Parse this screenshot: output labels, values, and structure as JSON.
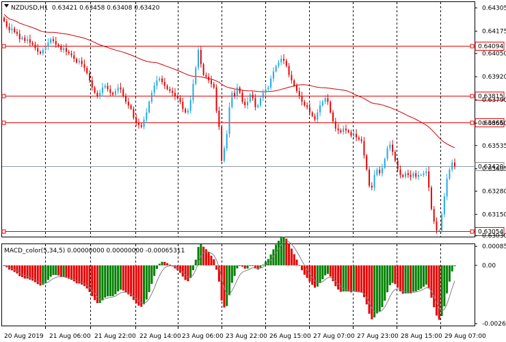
{
  "header": {
    "symbol": "NZDUSD,H1",
    "ohlc": "0.63421 0.63458 0.63408 0.63420"
  },
  "macd_header": "MACD_color(5,34,5) 0.00000000 0.00000000 -0.00065311",
  "colors": {
    "bull": "#1fa9e6",
    "bear": "#e60000",
    "macd_up": "#008000",
    "macd_down": "#e60000",
    "ma": "#cc0000",
    "grid": "#000000"
  },
  "chart_data": [
    {
      "type": "candlestick",
      "title": "NZDUSD,H1",
      "ylim": [
        0.63025,
        0.64338
      ],
      "y_ticks": [
        "0.64305",
        "0.64175",
        "0.64050",
        "0.63920",
        "0.63790",
        "0.63660",
        "0.63535",
        "0.63405",
        "0.63280",
        "0.63150",
        "0.63030"
      ],
      "x_ticks": [
        "20 Aug 2019",
        "21 Aug 06:00",
        "21 Aug 22:00",
        "22 Aug 14:00",
        "23 Aug 06:00",
        "23 Aug 22:00",
        "26 Aug 15:00",
        "27 Aug 07:00",
        "27 Aug 23:00",
        "28 Aug 15:00",
        "29 Aug 07:00"
      ],
      "horizontal_levels": [
        {
          "value": 0.64094,
          "label": "0.64094",
          "style": "red"
        },
        {
          "value": 0.63815,
          "label": "0.63815",
          "style": "red"
        },
        {
          "value": 0.63665,
          "label": "0.63665",
          "style": "red"
        },
        {
          "value": 0.6342,
          "label": "0.63420",
          "style": "grey"
        },
        {
          "value": 0.63054,
          "label": "0.63054",
          "style": "red"
        }
      ],
      "close_series": [
        0.6423,
        0.642,
        0.6418,
        0.6419,
        0.6417,
        0.6416,
        0.6413,
        0.6414,
        0.6412,
        0.6413,
        0.6411,
        0.641,
        0.6408,
        0.6406,
        0.6405,
        0.6407,
        0.6409,
        0.6411,
        0.6413,
        0.6412,
        0.641,
        0.6409,
        0.6407,
        0.6408,
        0.6406,
        0.6405,
        0.6404,
        0.6402,
        0.64,
        0.6401,
        0.6399,
        0.6397,
        0.6394,
        0.639,
        0.6386,
        0.6383,
        0.6381,
        0.6383,
        0.6386,
        0.6387,
        0.6385,
        0.6383,
        0.6382,
        0.6384,
        0.6386,
        0.6385,
        0.6381,
        0.6378,
        0.6376,
        0.6374,
        0.6369,
        0.6366,
        0.6365,
        0.6364,
        0.6368,
        0.6372,
        0.6378,
        0.6383,
        0.6387,
        0.639,
        0.6391,
        0.6389,
        0.6387,
        0.6385,
        0.6384,
        0.6383,
        0.6381,
        0.638,
        0.6378,
        0.6374,
        0.6372,
        0.6373,
        0.6379,
        0.6388,
        0.6397,
        0.6407,
        0.6399,
        0.6393,
        0.6392,
        0.639,
        0.6388,
        0.6386,
        0.6373,
        0.6364,
        0.6345,
        0.6352,
        0.636,
        0.6375,
        0.6383,
        0.6381,
        0.6386,
        0.6383,
        0.6378,
        0.6376,
        0.6378,
        0.6382,
        0.638,
        0.6375,
        0.6376,
        0.638,
        0.6383,
        0.6385,
        0.6386,
        0.6391,
        0.6395,
        0.6398,
        0.64,
        0.6402,
        0.6401,
        0.6398,
        0.6393,
        0.639,
        0.6387,
        0.6384,
        0.6381,
        0.6378,
        0.6376,
        0.6375,
        0.6372,
        0.637,
        0.6368,
        0.6372,
        0.6376,
        0.6378,
        0.638,
        0.6378,
        0.6372,
        0.6367,
        0.6363,
        0.6362,
        0.6361,
        0.6363,
        0.6362,
        0.6361,
        0.6359,
        0.636,
        0.6358,
        0.6357,
        0.6356,
        0.6348,
        0.634,
        0.6331,
        0.633,
        0.6337,
        0.634,
        0.6338,
        0.6341,
        0.6346,
        0.6352,
        0.6354,
        0.635,
        0.6345,
        0.634,
        0.6337,
        0.6336,
        0.6338,
        0.6337,
        0.6336,
        0.6338,
        0.6336,
        0.6337,
        0.6337,
        0.6338,
        0.6339,
        0.633,
        0.6318,
        0.6311,
        0.6306,
        0.6306,
        0.6315,
        0.6325,
        0.6335,
        0.634,
        0.6344,
        0.6342
      ],
      "macd": {
        "ylim": [
          -0.0027,
          0.00095
        ],
        "ticks": [
          "0.0008526",
          "0.00",
          "-0.0026134"
        ]
      }
    }
  ]
}
